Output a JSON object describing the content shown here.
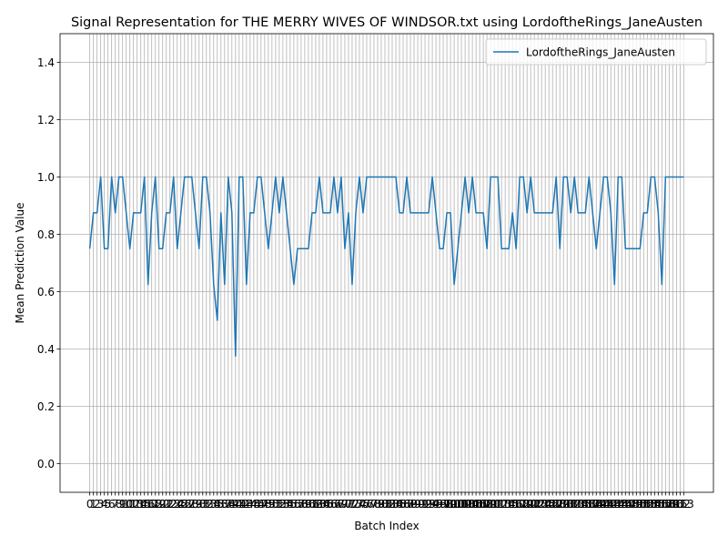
{
  "chart_data": {
    "type": "line",
    "title": "Signal Representation for THE MERRY WIVES OF WINDSOR.txt using LordoftheRings_JaneAusten",
    "x_label": "Batch Index",
    "y_label": "Mean Prediction Value",
    "x": [
      0,
      1,
      2,
      3,
      4,
      5,
      6,
      7,
      8,
      9,
      10,
      11,
      12,
      13,
      14,
      15,
      16,
      17,
      18,
      19,
      20,
      21,
      22,
      23,
      24,
      25,
      26,
      27,
      28,
      29,
      30,
      31,
      32,
      33,
      34,
      35,
      36,
      37,
      38,
      39,
      40,
      41,
      42,
      43,
      44,
      45,
      46,
      47,
      48,
      49,
      50,
      51,
      52,
      53,
      54,
      55,
      56,
      57,
      58,
      59,
      60,
      61,
      62,
      63,
      64,
      65,
      66,
      67,
      68,
      69,
      70,
      71,
      72,
      73,
      74,
      75,
      76,
      77,
      78,
      79,
      80,
      81,
      82,
      83,
      84,
      85,
      86,
      87,
      88,
      89,
      90,
      91,
      92,
      93,
      94,
      95,
      96,
      97,
      98,
      99,
      100,
      101,
      102,
      103,
      104,
      105,
      106,
      107,
      108,
      109,
      110,
      111,
      112,
      113,
      114,
      115,
      116,
      117,
      118,
      119,
      120,
      121,
      122,
      123,
      124,
      125,
      126,
      127,
      128,
      129,
      130,
      131,
      132,
      133,
      134,
      135,
      136,
      137,
      138,
      139,
      140,
      141,
      142,
      143,
      144,
      145,
      146,
      147,
      148,
      149,
      150,
      151,
      152,
      153,
      154,
      155,
      156,
      157,
      158,
      159,
      160,
      161,
      162,
      163
    ],
    "series": [
      {
        "name": "LordoftheRings_JaneAusten",
        "color": "#1f77b4",
        "values": [
          0.75,
          0.875,
          0.875,
          1,
          0.75,
          0.75,
          1,
          0.875,
          1,
          1,
          0.875,
          0.75,
          0.875,
          0.875,
          0.875,
          1,
          0.625,
          0.875,
          1,
          0.75,
          0.75,
          0.875,
          0.875,
          1,
          0.75,
          0.875,
          1,
          1,
          1,
          0.875,
          0.75,
          1,
          1,
          0.875,
          0.625,
          0.5,
          0.875,
          0.625,
          1,
          0.875,
          0.375,
          1,
          1,
          0.625,
          0.875,
          0.875,
          1,
          1,
          0.875,
          0.75,
          0.875,
          1,
          0.875,
          1,
          0.875,
          0.75,
          0.625,
          0.75,
          0.75,
          0.75,
          0.75,
          0.875,
          0.875,
          1,
          0.875,
          0.875,
          0.875,
          1,
          0.875,
          1,
          0.75,
          0.875,
          0.625,
          0.875,
          1,
          0.875,
          1,
          1,
          1,
          1,
          1,
          1,
          1,
          1,
          1,
          0.875,
          0.875,
          1,
          0.875,
          0.875,
          0.875,
          0.875,
          0.875,
          0.875,
          1,
          0.875,
          0.75,
          0.75,
          0.875,
          0.875,
          0.625,
          0.75,
          0.875,
          1,
          0.875,
          1,
          0.875,
          0.875,
          0.875,
          0.75,
          1,
          1,
          1,
          0.75,
          0.75,
          0.75,
          0.875,
          0.75,
          1,
          1,
          0.875,
          1,
          0.875,
          0.875,
          0.875,
          0.875,
          0.875,
          0.875,
          1,
          0.75,
          1,
          1,
          0.875,
          1,
          0.875,
          0.875,
          0.875,
          1,
          0.875,
          0.75,
          0.875,
          1,
          1,
          0.875,
          0.625,
          1,
          1,
          0.75,
          0.75,
          0.75,
          0.75,
          0.75,
          0.875,
          0.875,
          1,
          1,
          0.875,
          0.625,
          1,
          1,
          1,
          1,
          1,
          1
        ]
      }
    ],
    "xlim": [
      -8.15,
      171.15
    ],
    "xticks": [
      0,
      1,
      2,
      3,
      4,
      5,
      6,
      7,
      8,
      9,
      10,
      11,
      12,
      13,
      14,
      15,
      16,
      17,
      18,
      19,
      20,
      21,
      22,
      23,
      24,
      25,
      26,
      27,
      28,
      29,
      30,
      31,
      32,
      33,
      34,
      35,
      36,
      37,
      38,
      39,
      40,
      41,
      42,
      43,
      44,
      45,
      46,
      47,
      48,
      49,
      50,
      51,
      52,
      53,
      54,
      55,
      56,
      57,
      58,
      59,
      60,
      61,
      62,
      63,
      64,
      65,
      66,
      67,
      68,
      69,
      70,
      71,
      72,
      73,
      74,
      75,
      76,
      77,
      78,
      79,
      80,
      81,
      82,
      83,
      84,
      85,
      86,
      87,
      88,
      89,
      90,
      91,
      92,
      93,
      94,
      95,
      96,
      97,
      98,
      99,
      100,
      101,
      102,
      103,
      104,
      105,
      106,
      107,
      108,
      109,
      110,
      111,
      112,
      113,
      114,
      115,
      116,
      117,
      118,
      119,
      120,
      121,
      122,
      123,
      124,
      125,
      126,
      127,
      128,
      129,
      130,
      131,
      132,
      133,
      134,
      135,
      136,
      137,
      138,
      139,
      140,
      141,
      142,
      143,
      144,
      145,
      146,
      147,
      148,
      149,
      150,
      151,
      152,
      153,
      154,
      155,
      156,
      157,
      158,
      159,
      160,
      161,
      162,
      163
    ],
    "ylim": [
      -0.1,
      1.5
    ],
    "yticks": [
      {
        "value": 0,
        "label": "0.0"
      },
      0.2,
      0.4,
      0.6,
      0.8,
      {
        "value": 1,
        "label": "1.0"
      },
      1.2,
      1.4
    ],
    "grid": true,
    "legend": "upper right"
  }
}
